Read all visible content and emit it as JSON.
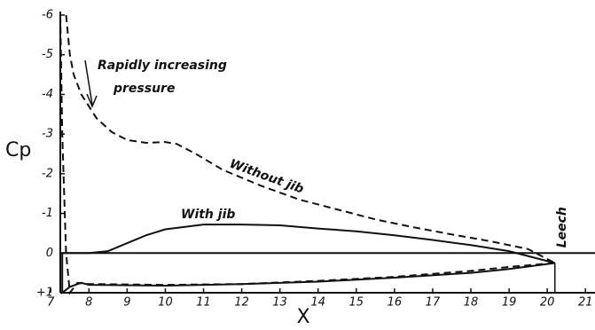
{
  "chart_data": {
    "type": "line",
    "xlabel": "X",
    "ylabel": "Cp",
    "xlim": [
      7.25,
      21.25
    ],
    "ylim": [
      -6,
      1
    ],
    "y_inverted": true,
    "xticks": [
      7,
      8,
      9,
      10,
      11,
      12,
      13,
      14,
      15,
      16,
      17,
      18,
      19,
      20,
      21
    ],
    "yticks": [
      -6,
      -5,
      -4,
      -3,
      -2,
      -1,
      0,
      {
        "value": 1,
        "label": "+1"
      }
    ],
    "annotations": [
      [
        "Rapidly increasing",
        "pressure"
      ],
      "Leech"
    ],
    "leech_x": 20.2,
    "series": [
      {
        "name": "With jib",
        "color": "#111",
        "dash": false,
        "upper": {
          "x": [
            7.3,
            7.5,
            8,
            8.5,
            9,
            9.5,
            10,
            11,
            12,
            13,
            14,
            15,
            16,
            17,
            18,
            19,
            20.2
          ],
          "values": [
            0,
            0,
            0,
            -0.05,
            -0.25,
            -0.45,
            -0.6,
            -0.72,
            -0.72,
            -0.7,
            -0.62,
            -0.55,
            -0.45,
            -0.33,
            -0.2,
            -0.05,
            0.25
          ]
        },
        "lower": {
          "x": [
            7.3,
            7.3,
            7.5,
            7.8,
            8,
            10,
            12,
            14,
            16,
            18,
            19,
            20.2
          ],
          "values": [
            0,
            1,
            0.85,
            0.75,
            0.8,
            0.82,
            0.78,
            0.72,
            0.62,
            0.5,
            0.4,
            0.25
          ]
        }
      },
      {
        "name": "Without jib",
        "color": "#111",
        "dash": true,
        "upper": {
          "x": [
            7.4,
            7.5,
            7.6,
            7.8,
            8.2,
            8.6,
            9,
            9.5,
            10,
            10.3,
            10.8,
            11.5,
            12.5,
            13.5,
            14.5,
            15.5,
            16.5,
            17.5,
            18.5,
            19.5,
            20.2
          ],
          "values": [
            -6,
            -5,
            -4.5,
            -4,
            -3.4,
            -3.05,
            -2.85,
            -2.78,
            -2.8,
            -2.75,
            -2.5,
            -2.1,
            -1.7,
            -1.35,
            -1.1,
            -0.85,
            -0.65,
            -0.47,
            -0.3,
            -0.1,
            0.25
          ]
        },
        "lower": {
          "x": [
            7.25,
            7.3,
            7.4,
            7.5,
            7.7,
            8,
            10,
            12,
            14,
            16,
            18,
            19,
            20.2
          ],
          "values": [
            -6,
            -3,
            0,
            1,
            0.75,
            0.78,
            0.8,
            0.78,
            0.7,
            0.6,
            0.45,
            0.35,
            0.25
          ]
        }
      }
    ]
  }
}
